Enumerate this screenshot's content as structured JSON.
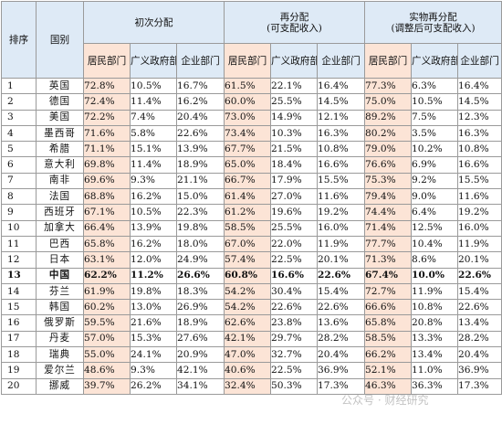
{
  "table": {
    "header": {
      "rank": "排序",
      "country": "国别",
      "groups": [
        {
          "line1": "初次分配",
          "line2": ""
        },
        {
          "line1": "再分配",
          "line2": "(可支配收入)"
        },
        {
          "line1": "实物再分配",
          "line2": "(调整后可支配收入)"
        }
      ],
      "sub": [
        "居民部门",
        "广义政府部门",
        "企业部门"
      ]
    },
    "rows": [
      {
        "rank": "1",
        "country": "英国",
        "v": [
          "72.8%",
          "10.5%",
          "16.7%",
          "61.5%",
          "22.1%",
          "16.4%",
          "77.3%",
          "6.3%",
          "16.4%"
        ]
      },
      {
        "rank": "2",
        "country": "德国",
        "v": [
          "72.4%",
          "11.4%",
          "16.2%",
          "60.0%",
          "25.5%",
          "14.5%",
          "75.0%",
          "10.5%",
          "14.5%"
        ]
      },
      {
        "rank": "3",
        "country": "美国",
        "v": [
          "72.2%",
          "7.4%",
          "20.4%",
          "73.0%",
          "14.9%",
          "12.1%",
          "89.2%",
          "7.5%",
          "12.3%"
        ]
      },
      {
        "rank": "4",
        "country": "墨西哥",
        "v": [
          "71.6%",
          "5.8%",
          "22.6%",
          "73.4%",
          "10.3%",
          "16.3%",
          "80.2%",
          "3.5%",
          "16.3%"
        ]
      },
      {
        "rank": "5",
        "country": "希腊",
        "v": [
          "71.1%",
          "15.1%",
          "13.9%",
          "67.7%",
          "21.5%",
          "10.8%",
          "79.0%",
          "10.2%",
          "10.8%"
        ]
      },
      {
        "rank": "6",
        "country": "意大利",
        "v": [
          "69.8%",
          "11.4%",
          "18.9%",
          "65.0%",
          "18.4%",
          "16.6%",
          "76.6%",
          "6.9%",
          "16.6%"
        ]
      },
      {
        "rank": "7",
        "country": "南非",
        "v": [
          "69.6%",
          "9.3%",
          "21.1%",
          "66.7%",
          "17.9%",
          "15.5%",
          "75.3%",
          "9.2%",
          "15.5%"
        ]
      },
      {
        "rank": "8",
        "country": "法国",
        "v": [
          "68.8%",
          "16.2%",
          "15.0%",
          "61.4%",
          "27.0%",
          "11.6%",
          "79.4%",
          "9.0%",
          "11.6%"
        ]
      },
      {
        "rank": "9",
        "country": "西班牙",
        "v": [
          "67.1%",
          "10.5%",
          "22.3%",
          "61.2%",
          "19.6%",
          "19.2%",
          "74.4%",
          "6.4%",
          "19.2%"
        ]
      },
      {
        "rank": "10",
        "country": "加拿大",
        "v": [
          "66.4%",
          "13.9%",
          "19.8%",
          "58.5%",
          "25.5%",
          "16.0%",
          "71.4%",
          "12.5%",
          "16.0%"
        ]
      },
      {
        "rank": "11",
        "country": "巴西",
        "v": [
          "65.8%",
          "16.2%",
          "18.0%",
          "67.0%",
          "22.0%",
          "11.9%",
          "77.7%",
          "10.4%",
          "11.9%"
        ]
      },
      {
        "rank": "12",
        "country": "日本",
        "v": [
          "63.1%",
          "12.0%",
          "24.9%",
          "57.4%",
          "22.5%",
          "20.1%",
          "71.3%",
          "8.6%",
          "20.1%"
        ]
      },
      {
        "rank": "13",
        "country": "中国",
        "v": [
          "62.2%",
          "11.2%",
          "26.6%",
          "60.8%",
          "16.6%",
          "22.6%",
          "67.4%",
          "10.0%",
          "22.6%"
        ]
      },
      {
        "rank": "14",
        "country": "芬兰",
        "v": [
          "61.9%",
          "19.8%",
          "18.3%",
          "54.2%",
          "30.4%",
          "15.4%",
          "72.7%",
          "11.9%",
          "15.4%"
        ]
      },
      {
        "rank": "15",
        "country": "韩国",
        "v": [
          "60.2%",
          "13.0%",
          "26.9%",
          "54.2%",
          "22.6%",
          "22.6%",
          "66.6%",
          "10.8%",
          "22.6%"
        ]
      },
      {
        "rank": "16",
        "country": "俄罗斯",
        "v": [
          "59.5%",
          "21.6%",
          "18.9%",
          "62.6%",
          "23.8%",
          "13.6%",
          "65.8%",
          "20.8%",
          "13.4%"
        ]
      },
      {
        "rank": "17",
        "country": "丹麦",
        "v": [
          "57.0%",
          "15.3%",
          "27.6%",
          "42.1%",
          "29.7%",
          "28.2%",
          "58.5%",
          "13.3%",
          "28.2%"
        ]
      },
      {
        "rank": "18",
        "country": "瑞典",
        "v": [
          "55.0%",
          "24.1%",
          "20.9%",
          "47.0%",
          "32.7%",
          "20.4%",
          "66.2%",
          "13.4%",
          "20.4%"
        ]
      },
      {
        "rank": "19",
        "country": "爱尔兰",
        "v": [
          "48.6%",
          "9.3%",
          "42.1%",
          "40.6%",
          "22.5%",
          "36.9%",
          "52.1%",
          "11.0%",
          "36.9%"
        ]
      },
      {
        "rank": "20",
        "country": "挪威",
        "v": [
          "39.7%",
          "26.2%",
          "34.1%",
          "32.4%",
          "50.3%",
          "17.3%",
          "46.3%",
          "36.3%",
          "17.3%"
        ]
      }
    ]
  },
  "watermark": "公众号 · 财经研究"
}
